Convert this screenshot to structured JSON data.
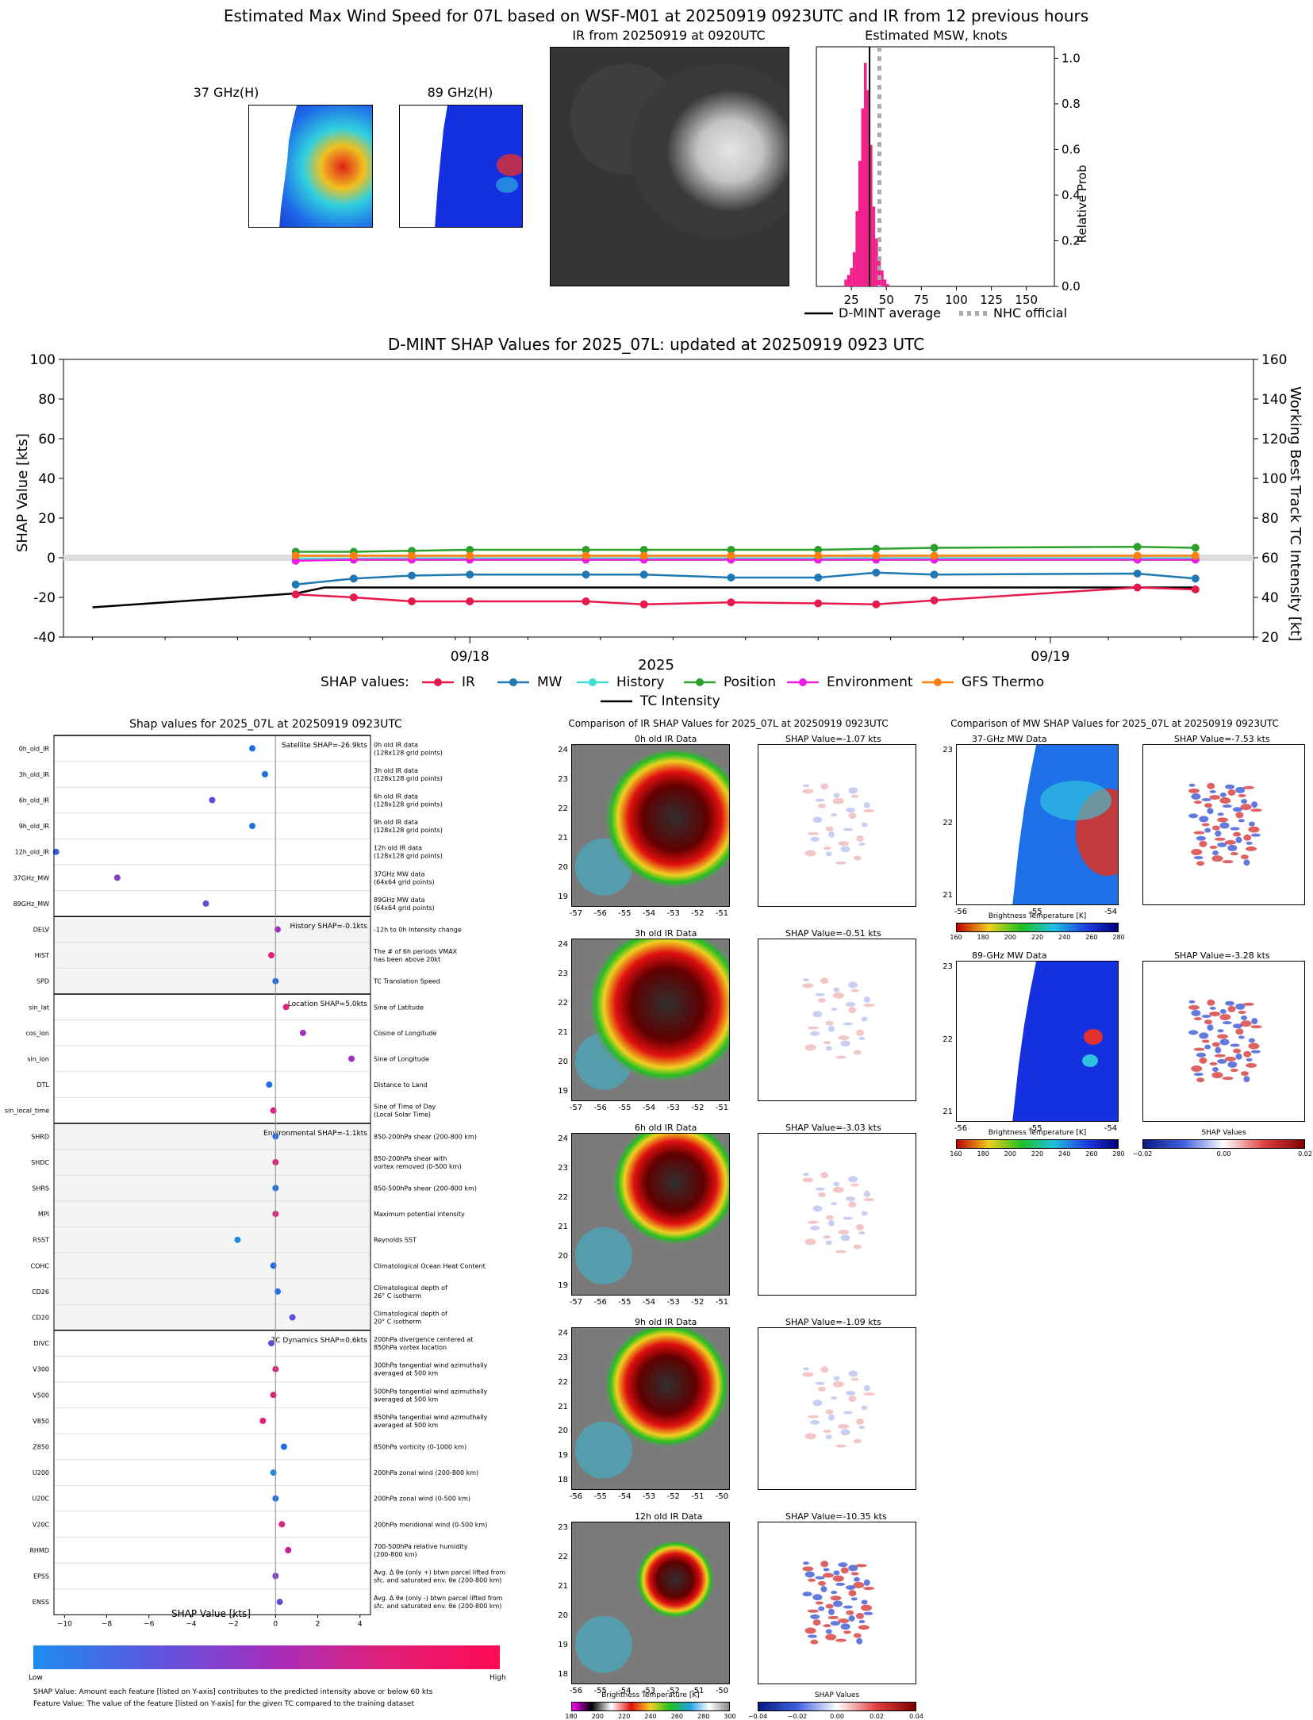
{
  "top": {
    "main_title": "Estimated Max Wind Speed for 07L based on WSF-M01 at 20250919 0923UTC and IR from 12 previous hours",
    "mw37_title": "37 GHz(H)",
    "mw89_title": "89 GHz(H)",
    "ir_title": "IR from 20250919 at 0920UTC",
    "msw_title": "Estimated MSW, knots"
  },
  "msw_histogram": {
    "type": "bar",
    "title": "Estimated MSW, knots",
    "ylabel": "Relative Prob",
    "xlim": [
      0,
      170
    ],
    "ylim": [
      0,
      1.05
    ],
    "xticks": [
      25,
      50,
      75,
      100,
      125,
      150
    ],
    "yticks": [
      "0.0",
      "0.2",
      "0.4",
      "0.6",
      "0.8",
      "1.0"
    ],
    "bins": [
      20,
      22,
      24,
      26,
      28,
      30,
      32,
      34,
      36,
      38,
      40,
      42,
      44,
      46,
      48,
      50
    ],
    "values": [
      0.03,
      0.05,
      0.08,
      0.15,
      0.33,
      0.55,
      0.78,
      0.98,
      0.86,
      0.62,
      0.35,
      0.21,
      0.12,
      0.07,
      0.03,
      0.01
    ],
    "dmint_average": 38,
    "nhc_official": 45,
    "legend": [
      "D-MINT average",
      "NHC official"
    ]
  },
  "chart_data": [
    {
      "type": "line",
      "title": "D-MINT SHAP Values for 2025_07L: updated at 20250919 0923 UTC",
      "ylabel": "SHAP Value [kts]",
      "y2label": "Working Best Track TC Intensity [kt]",
      "xlabel": "2025",
      "ylim": [
        -40,
        100
      ],
      "y2lim": [
        20,
        160
      ],
      "yticks": [
        -40,
        -20,
        0,
        20,
        40,
        60,
        80,
        100
      ],
      "y2ticks": [
        20,
        40,
        60,
        80,
        100,
        120,
        140,
        160
      ],
      "xticks": [
        "09/18",
        "09/19"
      ],
      "legend_label": "SHAP values:",
      "x": [
        0.3,
        0.4,
        0.5,
        0.6,
        0.8,
        0.9,
        1.05,
        1.2,
        1.3,
        1.4,
        1.75,
        1.85
      ],
      "series": [
        {
          "name": "IR",
          "color": "#e6194b",
          "values": [
            -18.5,
            -20,
            -22,
            -22,
            -22,
            -23.5,
            -22.5,
            -23,
            -23.5,
            -21.5,
            -15,
            -16
          ]
        },
        {
          "name": "MW",
          "color": "#1f77b4",
          "values": [
            -13.5,
            -10.5,
            -9,
            -8.5,
            -8.5,
            -8.5,
            -10,
            -10,
            -7.5,
            -8.5,
            -8,
            -10.5
          ]
        },
        {
          "name": "History",
          "color": "#40e0d0",
          "values": [
            -0.5,
            -0.5,
            -0.3,
            -0.3,
            -0.3,
            -0.3,
            -0.3,
            -0.3,
            -0.2,
            -0.2,
            -0.2,
            -0.2
          ]
        },
        {
          "name": "Position",
          "color": "#2ca02c",
          "values": [
            3,
            3,
            3.5,
            4,
            4,
            4,
            4,
            4,
            4.5,
            5,
            5.5,
            5
          ]
        },
        {
          "name": "Environment",
          "color": "#e91ee0",
          "values": [
            -1.5,
            -1,
            -1,
            -1,
            -1,
            -1,
            -1,
            -1,
            -1,
            -1,
            -1,
            -1
          ]
        },
        {
          "name": "GFS Thermo",
          "color": "#ff7f0e",
          "values": [
            1,
            1,
            1,
            1,
            1,
            1,
            1,
            1,
            1,
            1,
            1,
            1
          ]
        }
      ],
      "intensity": {
        "name": "TC Intensity",
        "x": [
          -0.05,
          0.3,
          0.35,
          1.85
        ],
        "values": [
          35,
          42,
          45,
          45
        ]
      }
    },
    {
      "type": "scatter",
      "title": "Shap values for 2025_07L at 20250919 0923UTC",
      "xlabel": "SHAP Value [kts]",
      "xlim": [
        -10.5,
        4.5
      ],
      "xticks": [
        -10,
        -8,
        -6,
        -4,
        -2,
        0,
        2,
        4
      ],
      "groups": [
        {
          "label": "Satellite SHAP=-26.9kts",
          "shaded": false,
          "features": [
            {
              "name": "0h_old_IR",
              "shap": -1.1,
              "color": "#1e6fe6",
              "desc": [
                "0h old IR data",
                "(128x128 grid points)"
              ]
            },
            {
              "name": "3h_old_IR",
              "shap": -0.5,
              "color": "#1e6fe6",
              "desc": [
                "3h old IR data",
                "(128x128 grid points)"
              ]
            },
            {
              "name": "6h_old_IR",
              "shap": -3.0,
              "color": "#5a4fd6",
              "desc": [
                "6h old IR data",
                "(128x128 grid points)"
              ]
            },
            {
              "name": "9h_old_IR",
              "shap": -1.1,
              "color": "#1e6fe6",
              "desc": [
                "9h old IR data",
                "(128x128 grid points)"
              ]
            },
            {
              "name": "12h_old_IR",
              "shap": -10.4,
              "color": "#3a5ee0",
              "desc": [
                "12h old IR data",
                "(128x128 grid points)"
              ]
            },
            {
              "name": "37GHz_MW",
              "shap": -7.5,
              "color": "#8040c8",
              "desc": [
                "37GHz MW data",
                "(64x64 grid points)"
              ]
            },
            {
              "name": "89GHz_MW",
              "shap": -3.3,
              "color": "#5a4fd6",
              "desc": [
                "89GHz MW data",
                "(64x64 grid points)"
              ]
            }
          ]
        },
        {
          "label": "History SHAP=-0.1kts",
          "shaded": true,
          "features": [
            {
              "name": "DELV",
              "shap": 0.1,
              "color": "#a030c0",
              "desc": [
                "-12h to 0h Intensity change"
              ]
            },
            {
              "name": "HIST",
              "shap": -0.2,
              "color": "#e0207a",
              "desc": [
                "The # of 6h periods VMAX",
                "has been above 20kt"
              ]
            },
            {
              "name": "SPD",
              "shap": 0.0,
              "color": "#1e6fe6",
              "desc": [
                "TC Translation Speed"
              ]
            }
          ]
        },
        {
          "label": "Location SHAP=5.0kts",
          "shaded": false,
          "features": [
            {
              "name": "sin_lat",
              "shap": 0.5,
              "color": "#e0207a",
              "desc": [
                "Sine of Latitude"
              ]
            },
            {
              "name": "cos_lon",
              "shap": 1.3,
              "color": "#a030c0",
              "desc": [
                "Cosine of Longitude"
              ]
            },
            {
              "name": "sin_lon",
              "shap": 3.6,
              "color": "#a030c0",
              "desc": [
                "Sine of Longitude"
              ]
            },
            {
              "name": "DTL",
              "shap": -0.3,
              "color": "#1e6fe6",
              "desc": [
                "Distance to Land"
              ]
            },
            {
              "name": "sin_local_time",
              "shap": -0.1,
              "color": "#e0207a",
              "desc": [
                "Sine of Time of Day",
                "(Local Solar Time)"
              ]
            }
          ]
        },
        {
          "label": "Environmental SHAP=-1.1kts",
          "shaded": true,
          "features": [
            {
              "name": "SHRD",
              "shap": 0.0,
              "color": "#1e6fe6",
              "desc": [
                "850-200hPa shear (200-800 km)"
              ]
            },
            {
              "name": "SHDC",
              "shap": 0.0,
              "color": "#e0207a",
              "desc": [
                "850-200hPa shear with",
                "vortex removed (0-500 km)"
              ]
            },
            {
              "name": "SHRS",
              "shap": 0.0,
              "color": "#1e6fe6",
              "desc": [
                "850-500hPa shear (200-800 km)"
              ]
            },
            {
              "name": "MPI",
              "shap": 0.0,
              "color": "#e0207a",
              "desc": [
                "Maximum potential intensity"
              ]
            },
            {
              "name": "RSST",
              "shap": -1.8,
              "color": "#1e8ae6",
              "desc": [
                "Reynolds SST"
              ]
            },
            {
              "name": "COHC",
              "shap": -0.1,
              "color": "#1e6fe6",
              "desc": [
                "Climatological Ocean Heat Content"
              ]
            },
            {
              "name": "CD26",
              "shap": 0.1,
              "color": "#1e6fe6",
              "desc": [
                "Climatological depth of",
                "26° C isotherm"
              ]
            },
            {
              "name": "CD20",
              "shap": 0.8,
              "color": "#5a4fd6",
              "desc": [
                "Climatological depth of",
                "20° C isotherm"
              ]
            }
          ]
        },
        {
          "label": "TC Dynamics SHAP=0.6kts",
          "shaded": false,
          "features": [
            {
              "name": "DIVC",
              "shap": -0.2,
              "color": "#5a4fd6",
              "desc": [
                "200hPa divergence centered at",
                "850hPa vortex location"
              ]
            },
            {
              "name": "V300",
              "shap": 0.0,
              "color": "#e0207a",
              "desc": [
                "300hPa tangential wind azimuthally",
                "averaged at 500 km"
              ]
            },
            {
              "name": "V500",
              "shap": -0.1,
              "color": "#e0207a",
              "desc": [
                "500hPa tangential wind azimuthally",
                "averaged at 500 km"
              ]
            },
            {
              "name": "V850",
              "shap": -0.6,
              "color": "#e0207a",
              "desc": [
                "850hPa tangential wind azimuthally",
                "averaged at 500 km"
              ]
            },
            {
              "name": "Z850",
              "shap": 0.4,
              "color": "#1e6fe6",
              "desc": [
                "850hPa vorticity (0-1000 km)"
              ]
            },
            {
              "name": "U200",
              "shap": -0.1,
              "color": "#1e8ae6",
              "desc": [
                "200hPa zonal wind (200-800 km)"
              ]
            },
            {
              "name": "U20C",
              "shap": 0.0,
              "color": "#1e6fe6",
              "desc": [
                "200hPa zonal wind (0-500 km)"
              ]
            },
            {
              "name": "V20C",
              "shap": 0.3,
              "color": "#e0207a",
              "desc": [
                "200hPa meridional wind (0-500 km)"
              ]
            },
            {
              "name": "RHMD",
              "shap": 0.6,
              "color": "#c020a0",
              "desc": [
                "700-500hPa relative humidity",
                "(200-800 km)"
              ]
            },
            {
              "name": "EPSS",
              "shap": 0.0,
              "color": "#8040c8",
              "desc": [
                "Avg. Δ θe (only +) btwn parcel lifted from",
                "sfc. and saturated env. θe (200-800 km)"
              ]
            },
            {
              "name": "ENSS",
              "shap": 0.2,
              "color": "#5a4fd6",
              "desc": [
                "Avg. Δ θe (only -) btwn parcel lifted from",
                "sfc. and saturated env. θe (200-800 km)"
              ]
            }
          ]
        }
      ],
      "colorbar": {
        "low": "Low",
        "high": "High"
      },
      "footnotes": [
        "SHAP Value: Amount each feature [listed on Y-axis] contributes to the predicted intensity above or below 60 kts",
        "Feature Value: The value of the feature [listed on Y-axis] for the given TC compared to the training dataset"
      ]
    }
  ],
  "ir_comparison": {
    "title": "Comparison of IR SHAP Values for 2025_07L at 20250919 0923UTC",
    "rows": [
      {
        "label": "0h old IR Data",
        "shap": "SHAP Value=-1.07 kts",
        "yticks": [
          "24",
          "23",
          "22",
          "21",
          "20",
          "19"
        ],
        "xticks": [
          "-57",
          "-56",
          "-55",
          "-54",
          "-53",
          "-52",
          "-51"
        ]
      },
      {
        "label": "3h old IR Data",
        "shap": "SHAP Value=-0.51 kts",
        "yticks": [
          "24",
          "23",
          "22",
          "21",
          "20",
          "19"
        ],
        "xticks": [
          "-57",
          "-56",
          "-55",
          "-54",
          "-53",
          "-52",
          "-51"
        ]
      },
      {
        "label": "6h old IR Data",
        "shap": "SHAP Value=-3.03 kts",
        "yticks": [
          "24",
          "23",
          "22",
          "21",
          "20",
          "19"
        ],
        "xticks": [
          "-57",
          "-56",
          "-55",
          "-54",
          "-53",
          "-52",
          "-51"
        ]
      },
      {
        "label": "9h old IR Data",
        "shap": "SHAP Value=-1.09 kts",
        "yticks": [
          "24",
          "23",
          "22",
          "21",
          "20",
          "19",
          "18"
        ],
        "xticks": [
          "-56",
          "-55",
          "-54",
          "-53",
          "-52",
          "-51",
          "-50"
        ]
      },
      {
        "label": "12h old IR Data",
        "shap": "SHAP Value=-10.35 kts",
        "yticks": [
          "23",
          "22",
          "21",
          "20",
          "19",
          "18"
        ],
        "xticks": [
          "-56",
          "-55",
          "-54",
          "-53",
          "-52",
          "-51",
          "-50"
        ]
      }
    ],
    "bt_label": "Brightness Temperature [K]",
    "bt_ticks": [
      "180",
      "200",
      "220",
      "240",
      "260",
      "280",
      "300"
    ],
    "shap_label": "SHAP Values",
    "shap_ticks": [
      "−0.04",
      "−0.02",
      "0.00",
      "0.02",
      "0.04"
    ]
  },
  "mw_comparison": {
    "title": "Comparison of MW SHAP Values for 2025_07L at 20250919 0923UTC",
    "rows": [
      {
        "label": "37-GHz MW Data",
        "shap": "SHAP Value=-7.53 kts"
      },
      {
        "label": "89-GHz MW Data",
        "shap": "SHAP Value=-3.28 kts"
      }
    ],
    "yticks": [
      "23",
      "22",
      "21"
    ],
    "xticks": [
      "-56",
      "-55",
      "-54"
    ],
    "bt_label": "Brightness Temperature [K]",
    "bt_ticks": [
      "160",
      "180",
      "200",
      "220",
      "240",
      "260",
      "280"
    ],
    "shap_label": "SHAP Values",
    "shap_ticks": [
      "−0.02",
      "0.00",
      "0.02"
    ]
  }
}
